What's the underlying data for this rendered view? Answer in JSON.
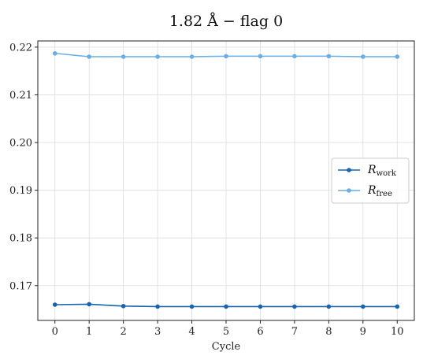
{
  "chart_data": {
    "type": "line",
    "title": "1.82 Å  −  flag 0",
    "xlabel": "Cycle",
    "ylabel": "",
    "x": [
      0,
      1,
      2,
      3,
      4,
      5,
      6,
      7,
      8,
      9,
      10
    ],
    "xticks": [
      "0",
      "1",
      "2",
      "3",
      "4",
      "5",
      "6",
      "7",
      "8",
      "9",
      "10"
    ],
    "yticks": [
      "0.17",
      "0.18",
      "0.19",
      "0.20",
      "0.21",
      "0.22"
    ],
    "ytick_values": [
      0.17,
      0.18,
      0.19,
      0.2,
      0.21,
      0.22
    ],
    "xlim": [
      -0.5,
      10.5
    ],
    "ylim": [
      0.1627,
      0.2213
    ],
    "grid": true,
    "legend_position": "center-right",
    "series": [
      {
        "name": "R",
        "subscript": "work",
        "color": "#1a63ad",
        "values": [
          0.166,
          0.1661,
          0.1657,
          0.1656,
          0.1656,
          0.1656,
          0.1656,
          0.1656,
          0.1656,
          0.1656,
          0.1656
        ]
      },
      {
        "name": "R",
        "subscript": "free",
        "color": "#6aaee4",
        "values": [
          0.2187,
          0.218,
          0.218,
          0.218,
          0.218,
          0.2181,
          0.2181,
          0.2181,
          0.2181,
          0.218,
          0.218
        ]
      }
    ]
  }
}
